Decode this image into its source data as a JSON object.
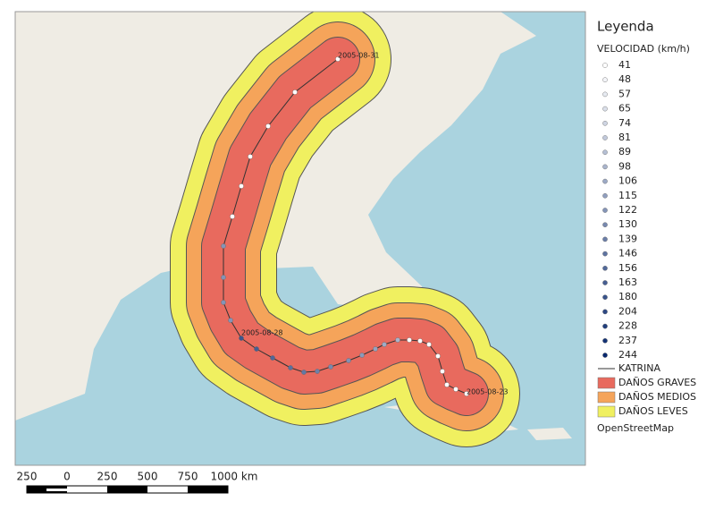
{
  "map": {
    "labels": [
      "2005-08-31",
      "2005-08-28",
      "2005-08-23"
    ]
  },
  "legend": {
    "title": "Leyenda",
    "speed_title": "VELOCIDAD (km/h)",
    "speeds": [
      "41",
      "48",
      "57",
      "65",
      "74",
      "81",
      "89",
      "98",
      "106",
      "115",
      "122",
      "130",
      "139",
      "146",
      "156",
      "163",
      "180",
      "204",
      "228",
      "237",
      "244"
    ],
    "track": "KATRINA",
    "zones": [
      {
        "label": "DAÑOS GRAVES",
        "color": "#e86a5e"
      },
      {
        "label": "DAÑOS MEDIOS",
        "color": "#f5a45a"
      },
      {
        "label": "DAÑOS LEVES",
        "color": "#f0f060"
      }
    ],
    "basemap": "OpenStreetMap"
  },
  "scale": {
    "labels": [
      "250",
      "0",
      "250",
      "500",
      "750",
      "1000 km"
    ]
  }
}
